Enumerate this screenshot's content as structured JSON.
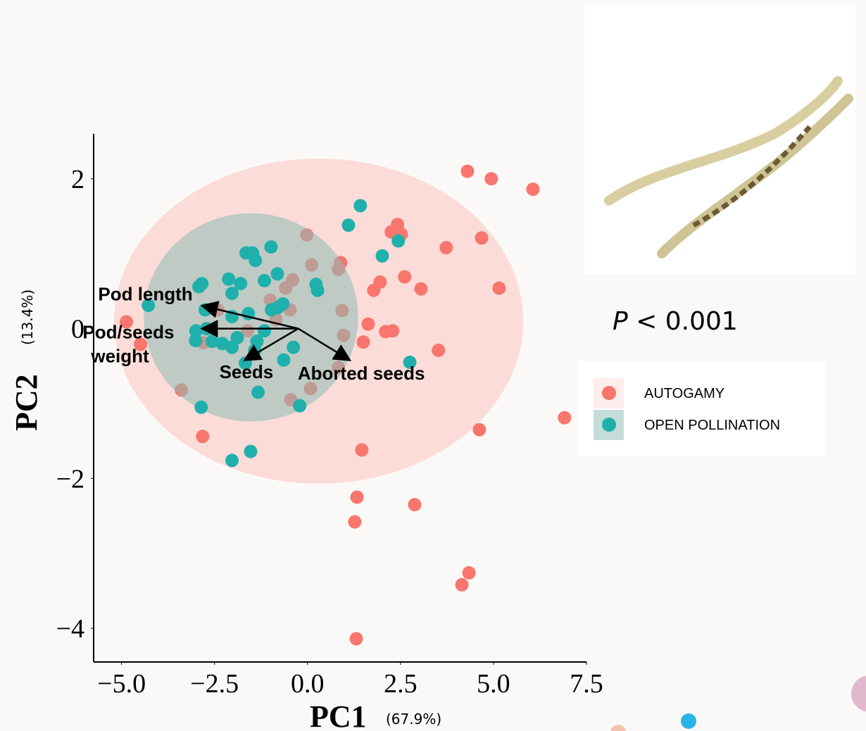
{
  "chart_data": {
    "type": "scatter",
    "x_label": "PC1",
    "x_label_note": "(67.9%)",
    "y_label": "PC2",
    "y_label_note": "(13.4%)",
    "xlim": [
      -5.75,
      7.5
    ],
    "xticks": [
      {
        "value": -5,
        "label": "−5.0"
      },
      {
        "value": -2.5,
        "label": "−2.5"
      },
      {
        "value": 0,
        "label": "0.0"
      },
      {
        "value": 2.5,
        "label": "2.5"
      },
      {
        "value": 5,
        "label": "5.0"
      },
      {
        "value": 7.5,
        "label": "7.5"
      }
    ],
    "ylim": [
      -4.45,
      2.6
    ],
    "yticks": [
      {
        "value": -4,
        "label": "−4"
      },
      {
        "value": -2,
        "label": "−2"
      },
      0,
      2
    ],
    "annotation": {
      "symbol": "P",
      "text": "< 0.001"
    },
    "series": [
      {
        "name": "AUTOGAMY",
        "color": "#f8766d",
        "ellipse_color": "#fcdcd8",
        "ellipse": {
          "cx": 0.3,
          "cy": 0.1,
          "rx": 5.5,
          "ry": 2.17
        },
        "x": [
          4.3,
          4.94,
          6.06,
          2.42,
          2.52,
          2.25,
          4.68,
          3.73,
          -0.02,
          2.61,
          1.95,
          3.05,
          1.78,
          5.15,
          1.63,
          2.1,
          2.29,
          1.5,
          3.52,
          0.83,
          0.08,
          6.91,
          4.62,
          1.46,
          -2.82,
          1.33,
          2.88,
          1.27,
          4.34,
          4.15,
          1.31,
          -4.87,
          -4.49,
          0.11,
          0.89,
          0.83,
          -0.4,
          -0.59,
          -1.0,
          -0.47,
          0.93,
          0.97,
          -0.45,
          -3.39,
          -2.8,
          -2.41,
          -1.61,
          -0.85
        ],
        "y": [
          2.1,
          2.0,
          1.86,
          1.39,
          1.26,
          1.29,
          1.21,
          1.08,
          1.25,
          0.69,
          0.62,
          0.53,
          0.51,
          0.54,
          0.06,
          -0.04,
          -0.03,
          -0.18,
          -0.29,
          -0.52,
          -0.8,
          -1.19,
          -1.35,
          -1.62,
          -1.44,
          -2.25,
          -2.35,
          -2.58,
          -3.26,
          -3.42,
          -4.14,
          0.09,
          -0.21,
          0.85,
          0.88,
          0.79,
          0.65,
          0.54,
          0.38,
          0.25,
          0.24,
          -0.09,
          -0.95,
          -0.82,
          -0.19,
          0.25,
          -0.03,
          0.12
        ]
      },
      {
        "name": "OPEN POLLINATION",
        "color": "#1fb0ab",
        "ellipse_color": "#8cbcb6",
        "ellipse": {
          "cx": -1.52,
          "cy": 0.15,
          "rx": 2.88,
          "ry": 1.39
        },
        "x": [
          1.42,
          1.1,
          2.44,
          2.01,
          -0.98,
          -1.65,
          -1.48,
          -1.4,
          -0.81,
          -1.16,
          -2.12,
          -1.8,
          -2.03,
          -2.84,
          -2.92,
          -4.28,
          0.23,
          0.27,
          -0.66,
          -0.8,
          -0.97,
          -2.75,
          -1.59,
          -2.03,
          -2.71,
          -3.0,
          -3.01,
          -2.56,
          -2.29,
          -2.03,
          -1.89,
          -1.36,
          -1.16,
          -1.42,
          -0.38,
          -1.67,
          -0.64,
          2.75,
          -1.33,
          -0.21,
          -2.86,
          -1.53,
          -2.03
        ],
        "y": [
          1.64,
          1.38,
          1.17,
          0.97,
          1.09,
          1.01,
          1.01,
          0.91,
          0.73,
          0.64,
          0.66,
          0.6,
          0.47,
          0.6,
          0.56,
          0.31,
          0.59,
          0.51,
          0.33,
          0.28,
          0.25,
          0.25,
          0.2,
          0.16,
          0.0,
          -0.03,
          -0.16,
          -0.17,
          -0.2,
          -0.25,
          -0.12,
          -0.17,
          -0.03,
          -0.29,
          -0.25,
          -0.46,
          -0.42,
          -0.45,
          -0.85,
          -1.03,
          -1.05,
          -1.64,
          -1.76
        ]
      }
    ],
    "loadings": {
      "origin": [
        -0.25,
        0
      ],
      "vectors": [
        {
          "name": "Pod length",
          "x": -2.79,
          "y": 0.3
        },
        {
          "name": "Pod/seeds weight",
          "x": -2.79,
          "y": 0
        },
        {
          "name": "Seeds",
          "x": -1.65,
          "y": -0.41
        },
        {
          "name": "Aborted seeds",
          "x": 1.1,
          "y": -0.41
        }
      ]
    }
  }
}
